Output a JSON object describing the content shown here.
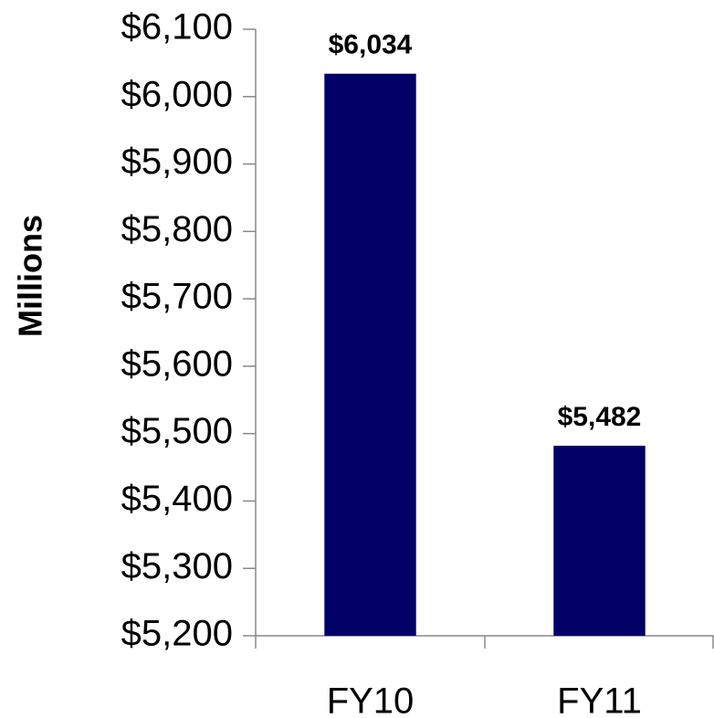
{
  "chart_data": {
    "type": "bar",
    "y_label": "Millions",
    "categories": [
      "FY10",
      "FY11"
    ],
    "values": [
      6034,
      5482
    ],
    "value_labels": [
      "$6,034",
      "$5,482"
    ],
    "color": "#000066",
    "ylim": [
      5200,
      6100
    ],
    "yticks": [
      {
        "value": 5200,
        "label": "$5,200"
      },
      {
        "value": 5300,
        "label": "$5,300"
      },
      {
        "value": 5400,
        "label": "$5,400"
      },
      {
        "value": 5500,
        "label": "$5,500"
      },
      {
        "value": 5600,
        "label": "$5,600"
      },
      {
        "value": 5700,
        "label": "$5,700"
      },
      {
        "value": 5800,
        "label": "$5,800"
      },
      {
        "value": 5900,
        "label": "$5,900"
      },
      {
        "value": 6000,
        "label": "$6,000"
      },
      {
        "value": 6100,
        "label": "$6,100"
      }
    ],
    "grid": false
  }
}
